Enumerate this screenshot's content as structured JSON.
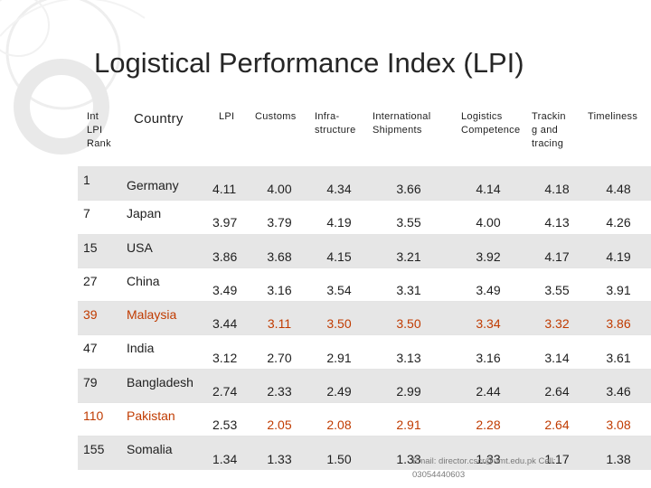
{
  "title": "Logistical Performance Index (LPI)",
  "headers": {
    "rank": [
      "Int",
      "LPI",
      "Rank"
    ],
    "country": "Country",
    "lpi": "LPI",
    "customs": "Customs",
    "infrastructure": [
      "Infra-",
      "structure"
    ],
    "shipments": [
      "International",
      "Shipments"
    ],
    "competence": [
      "Logistics",
      "Competence"
    ],
    "tracking": [
      "Trackin",
      "g and",
      "tracing"
    ],
    "timeliness": "Timeliness"
  },
  "rows": [
    {
      "rank": "1",
      "country": "Germany",
      "lpi": "4.11",
      "customs": "4.00",
      "infrastructure": "4.34",
      "shipments": "3.66",
      "competence": "4.14",
      "tracking": "4.18",
      "timeliness": "4.48"
    },
    {
      "rank": "7",
      "country": "Japan",
      "lpi": "3.97",
      "customs": "3.79",
      "infrastructure": "4.19",
      "shipments": "3.55",
      "competence": "4.00",
      "tracking": "4.13",
      "timeliness": "4.26"
    },
    {
      "rank": "15",
      "country": "USA",
      "lpi": "3.86",
      "customs": "3.68",
      "infrastructure": "4.15",
      "shipments": "3.21",
      "competence": "3.92",
      "tracking": "4.17",
      "timeliness": "4.19"
    },
    {
      "rank": "27",
      "country": "China",
      "lpi": "3.49",
      "customs": "3.16",
      "infrastructure": "3.54",
      "shipments": "3.31",
      "competence": "3.49",
      "tracking": "3.55",
      "timeliness": "3.91"
    },
    {
      "rank": "39",
      "country": "Malaysia",
      "lpi": "3.44",
      "customs": "3.11",
      "infrastructure": "3.50",
      "shipments": "3.50",
      "competence": "3.34",
      "tracking": "3.32",
      "timeliness": "3.86"
    },
    {
      "rank": "47",
      "country": "India",
      "lpi": "3.12",
      "customs": "2.70",
      "infrastructure": "2.91",
      "shipments": "3.13",
      "competence": "3.16",
      "tracking": "3.14",
      "timeliness": "3.61"
    },
    {
      "rank": "79",
      "country": "Bangladesh",
      "lpi": "2.74",
      "customs": "2.33",
      "infrastructure": "2.49",
      "shipments": "2.99",
      "competence": "2.44",
      "tracking": "2.64",
      "timeliness": "3.46"
    },
    {
      "rank": "110",
      "country": "Pakistan",
      "lpi": "2.53",
      "customs": "2.05",
      "infrastructure": "2.08",
      "shipments": "2.91",
      "competence": "2.28",
      "tracking": "2.64",
      "timeliness": "3.08"
    },
    {
      "rank": "155",
      "country": "Somalia",
      "lpi": "1.34",
      "customs": "1.33",
      "infrastructure": "1.50",
      "shipments": "1.33",
      "competence": "1.33",
      "tracking": "1.17",
      "timeliness": "1.38"
    }
  ],
  "footer": {
    "line1": "Email: director.cscr@umt.edu.pk Cell:",
    "line2": "03054440603"
  },
  "colors": {
    "highlight": "#c03b00",
    "stripe": "#e6e6e6",
    "deco_ring": "#e9e9e9"
  }
}
